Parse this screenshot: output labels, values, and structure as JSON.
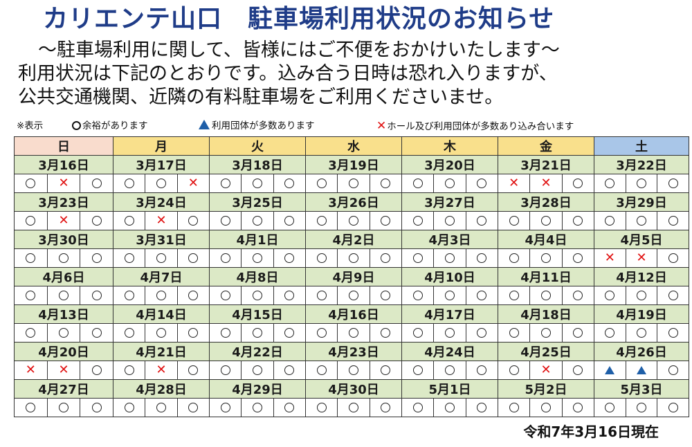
{
  "title": "カリエンテ山口　駐車場利用状況のお知らせ",
  "intro": [
    "　〜駐車場利用に関して、皆様にはご不便をおかけいたします〜",
    "利用状況は下記のとおりです。込み合う日時は恐れ入りますが、",
    "公共交通機関、近隣の有料駐車場をご利用くださいませ。"
  ],
  "legend": {
    "prefix": "※表示",
    "available": "余裕があります",
    "group": "利用団体が多数あります",
    "crowded": "ホール及び利用団体が多数あり込み合います"
  },
  "days": [
    "日",
    "月",
    "火",
    "水",
    "木",
    "金",
    "土"
  ],
  "colors": {
    "sunday": "#f9dccd",
    "weekday": "#f9e08c",
    "saturday": "#a9c6e8",
    "date_row": "#dce9c6",
    "cross": "#e01010",
    "triangle": "#1f5fa8",
    "title": "#1f3c88"
  },
  "symbol_key": {
    "o": "available",
    "x": "crowded",
    "t": "group"
  },
  "weeks": [
    {
      "dates": [
        "3月16日",
        "3月17日",
        "3月18日",
        "3月19日",
        "3月20日",
        "3月21日",
        "3月22日"
      ],
      "status": [
        [
          "o",
          "x",
          "o"
        ],
        [
          "o",
          "o",
          "x"
        ],
        [
          "o",
          "o",
          "o"
        ],
        [
          "o",
          "o",
          "o"
        ],
        [
          "o",
          "o",
          "o"
        ],
        [
          "x",
          "x",
          "o"
        ],
        [
          "o",
          "o",
          "o"
        ]
      ]
    },
    {
      "dates": [
        "3月23日",
        "3月24日",
        "3月25日",
        "3月26日",
        "3月27日",
        "3月28日",
        "3月29日"
      ],
      "status": [
        [
          "o",
          "x",
          "o"
        ],
        [
          "o",
          "x",
          "o"
        ],
        [
          "o",
          "o",
          "o"
        ],
        [
          "o",
          "o",
          "o"
        ],
        [
          "o",
          "o",
          "o"
        ],
        [
          "o",
          "o",
          "o"
        ],
        [
          "o",
          "o",
          "o"
        ]
      ]
    },
    {
      "dates": [
        "3月30日",
        "3月31日",
        "4月1日",
        "4月2日",
        "4月3日",
        "4月4日",
        "4月5日"
      ],
      "status": [
        [
          "o",
          "o",
          "o"
        ],
        [
          "o",
          "o",
          "o"
        ],
        [
          "o",
          "o",
          "o"
        ],
        [
          "o",
          "o",
          "o"
        ],
        [
          "o",
          "o",
          "o"
        ],
        [
          "o",
          "o",
          "o"
        ],
        [
          "x",
          "x",
          "o"
        ]
      ]
    },
    {
      "dates": [
        "4月6日",
        "4月7日",
        "4月8日",
        "4月9日",
        "4月10日",
        "4月11日",
        "4月12日"
      ],
      "status": [
        [
          "o",
          "o",
          "o"
        ],
        [
          "o",
          "o",
          "o"
        ],
        [
          "o",
          "o",
          "o"
        ],
        [
          "o",
          "o",
          "o"
        ],
        [
          "o",
          "o",
          "o"
        ],
        [
          "o",
          "o",
          "o"
        ],
        [
          "o",
          "o",
          "o"
        ]
      ]
    },
    {
      "dates": [
        "4月13日",
        "4月14日",
        "4月15日",
        "4月16日",
        "4月17日",
        "4月18日",
        "4月19日"
      ],
      "status": [
        [
          "o",
          "o",
          "o"
        ],
        [
          "o",
          "o",
          "o"
        ],
        [
          "o",
          "o",
          "o"
        ],
        [
          "o",
          "o",
          "o"
        ],
        [
          "o",
          "o",
          "o"
        ],
        [
          "o",
          "o",
          "o"
        ],
        [
          "o",
          "o",
          "o"
        ]
      ]
    },
    {
      "dates": [
        "4月20日",
        "4月21日",
        "4月22日",
        "4月23日",
        "4月24日",
        "4月25日",
        "4月26日"
      ],
      "status": [
        [
          "x",
          "x",
          "o"
        ],
        [
          "o",
          "x",
          "o"
        ],
        [
          "o",
          "o",
          "o"
        ],
        [
          "o",
          "o",
          "o"
        ],
        [
          "o",
          "o",
          "o"
        ],
        [
          "o",
          "x",
          "o"
        ],
        [
          "t",
          "t",
          "o"
        ]
      ]
    },
    {
      "dates": [
        "4月27日",
        "4月28日",
        "4月29日",
        "4月30日",
        "5月1日",
        "5月2日",
        "5月3日"
      ],
      "status": [
        [
          "o",
          "o",
          "o"
        ],
        [
          "o",
          "o",
          "o"
        ],
        [
          "o",
          "o",
          "o"
        ],
        [
          "o",
          "o",
          "o"
        ],
        [
          "o",
          "o",
          "o"
        ],
        [
          "o",
          "o",
          "o"
        ],
        [
          "o",
          "o",
          "o"
        ]
      ]
    }
  ],
  "footer": "令和7年3月16日現在"
}
